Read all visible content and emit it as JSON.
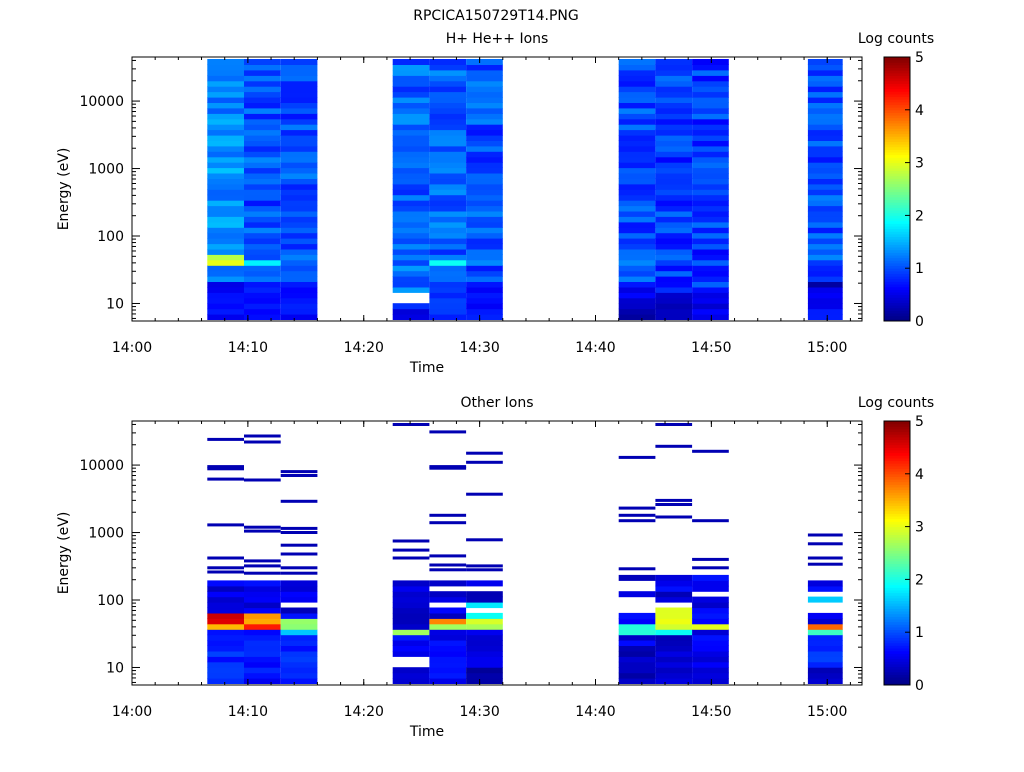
{
  "figure_title": "RPCICA150729T14.PNG",
  "chart_data": [
    {
      "type": "heatmap",
      "title": "H+ He++ Ions",
      "xlabel": "Time",
      "ylabel": "Energy (eV)",
      "xlim": [
        "14:00",
        "15:03"
      ],
      "ylim": [
        5.5,
        45000
      ],
      "yscale": "log",
      "x_ticks": [
        "14:00",
        "14:10",
        "14:20",
        "14:30",
        "14:40",
        "14:50",
        "15:00"
      ],
      "y_ticks": [
        "10",
        "100",
        "1000",
        "10000"
      ],
      "colorbar": {
        "label": "Log counts",
        "ticks": [
          "0",
          "1",
          "2",
          "3",
          "4",
          "5"
        ],
        "range": [
          0,
          5
        ],
        "colormap": "jet"
      },
      "legend": "none",
      "grid": false,
      "columns": [
        {
          "start": "14:06:30",
          "end": "14:09:40",
          "emin": 6,
          "emax": 42000,
          "base": 1.3,
          "features": [
            {
              "lo": 38,
              "hi": 58,
              "v": 2.9
            },
            {
              "lo": 6,
              "hi": 20,
              "v": 0.6
            }
          ]
        },
        {
          "start": "14:09:40",
          "end": "14:12:50",
          "emin": 6,
          "emax": 42000,
          "base": 1.0,
          "features": [
            {
              "lo": 38,
              "hi": 46,
              "v": 1.8
            },
            {
              "lo": 6,
              "hi": 20,
              "v": 0.7
            }
          ]
        },
        {
          "start": "14:12:50",
          "end": "14:16:00",
          "emin": 6,
          "emax": 42000,
          "base": 1.0,
          "features": [
            {
              "lo": 28,
              "hi": 32,
              "v": null
            },
            {
              "lo": 6,
              "hi": 20,
              "v": 0.7
            }
          ]
        },
        {
          "start": "14:22:30",
          "end": "14:25:40",
          "emin": 6,
          "emax": 42000,
          "base": 1.1,
          "features": [
            {
              "lo": 11,
              "hi": 15,
              "v": null
            },
            {
              "lo": 6,
              "hi": 9,
              "v": 0.5
            }
          ]
        },
        {
          "start": "14:25:40",
          "end": "14:28:50",
          "emin": 6,
          "emax": 42000,
          "base": 1.1,
          "features": [
            {
              "lo": 40,
              "hi": 48,
              "v": 1.8
            },
            {
              "lo": 6,
              "hi": 20,
              "v": 0.8
            }
          ]
        },
        {
          "start": "14:28:50",
          "end": "14:32:00",
          "emin": 6,
          "emax": 42000,
          "base": 1.0,
          "features": [
            {
              "lo": 6,
              "hi": 20,
              "v": 0.7
            }
          ]
        },
        {
          "start": "14:42:00",
          "end": "14:45:10",
          "emin": 6,
          "emax": 42000,
          "base": 1.0,
          "features": [
            {
              "lo": 6,
              "hi": 9,
              "v": 0.1
            },
            {
              "lo": 9,
              "hi": 18,
              "v": 0.5
            }
          ]
        },
        {
          "start": "14:45:10",
          "end": "14:48:20",
          "emin": 6,
          "emax": 42000,
          "base": 0.9,
          "features": [
            {
              "lo": 6,
              "hi": 14,
              "v": 0.4
            }
          ]
        },
        {
          "start": "14:48:20",
          "end": "14:51:30",
          "emin": 6,
          "emax": 42000,
          "base": 0.9,
          "features": [
            {
              "lo": 6,
              "hi": 14,
              "v": 0.5
            }
          ]
        },
        {
          "start": "14:58:20",
          "end": "15:01:20",
          "emin": 6,
          "emax": 42000,
          "base": 1.0,
          "features": [
            {
              "lo": 17,
              "hi": 21,
              "v": 0.2
            },
            {
              "lo": 9,
              "hi": 17,
              "v": 0.5
            },
            {
              "lo": 6,
              "hi": 9,
              "v": 0.8
            }
          ]
        }
      ]
    },
    {
      "type": "heatmap",
      "title": "Other Ions",
      "xlabel": "Time",
      "ylabel": "Energy (eV)",
      "xlim": [
        "14:00",
        "15:03"
      ],
      "ylim": [
        5.5,
        45000
      ],
      "yscale": "log",
      "x_ticks": [
        "14:00",
        "14:10",
        "14:20",
        "14:30",
        "14:40",
        "14:50",
        "15:00"
      ],
      "y_ticks": [
        "10",
        "100",
        "1000",
        "10000"
      ],
      "colorbar": {
        "label": "Log counts",
        "ticks": [
          "0",
          "1",
          "2",
          "3",
          "4",
          "5"
        ],
        "range": [
          0,
          5
        ],
        "colormap": "jet"
      },
      "legend": "none",
      "grid": false,
      "columns": [
        {
          "start": "14:06:30",
          "end": "14:09:40",
          "dense_top": 210,
          "features": [
            {
              "lo": 44,
              "hi": 62,
              "v": 4.6
            },
            {
              "lo": 36,
              "hi": 44,
              "v": 3.4
            },
            {
              "lo": 6,
              "hi": 30,
              "v": 0.8
            }
          ],
          "lines": [
            24000,
            9500,
            8800,
            6200,
            1300,
            420,
            300,
            260
          ]
        },
        {
          "start": "14:09:40",
          "end": "14:12:50",
          "dense_top": 210,
          "features": [
            {
              "lo": 44,
              "hi": 62,
              "v": 3.6
            },
            {
              "lo": 38,
              "hi": 44,
              "v": 4.2
            },
            {
              "lo": 6,
              "hi": 30,
              "v": 0.7
            }
          ],
          "lines": [
            27000,
            22000,
            6000,
            1200,
            1050,
            380,
            320,
            250
          ]
        },
        {
          "start": "14:12:50",
          "end": "14:16:00",
          "dense_top": 210,
          "features": [
            {
              "lo": 40,
              "hi": 50,
              "v": 2.6
            },
            {
              "lo": 32,
              "hi": 40,
              "v": 1.6
            },
            {
              "lo": 6,
              "hi": 30,
              "v": 0.8
            }
          ],
          "lines": [
            8000,
            7000,
            2900,
            1150,
            1000,
            650,
            480,
            300,
            250
          ]
        },
        {
          "start": "14:22:30",
          "end": "14:25:40",
          "dense_top": 200,
          "features": [
            {
              "lo": 28,
              "hi": 40,
              "v": 2.7
            },
            {
              "lo": 11,
              "hi": 14,
              "v": null
            },
            {
              "lo": 6,
              "hi": 9,
              "v": 0.3
            }
          ],
          "lines": [
            40000,
            750,
            550,
            420
          ]
        },
        {
          "start": "14:25:40",
          "end": "14:28:50",
          "dense_top": 190,
          "features": [
            {
              "lo": 44,
              "hi": 58,
              "v": 3.8
            },
            {
              "lo": 38,
              "hi": 44,
              "v": 2.8
            },
            {
              "lo": 6,
              "hi": 30,
              "v": 0.6
            }
          ],
          "lines": [
            31000,
            9500,
            9000,
            1800,
            1400,
            450,
            330,
            280
          ]
        },
        {
          "start": "14:28:50",
          "end": "14:32:00",
          "dense_top": 195,
          "features": [
            {
              "lo": 50,
              "hi": 90,
              "v": 1.9
            },
            {
              "lo": 40,
              "hi": 50,
              "v": 2.8
            },
            {
              "lo": 6,
              "hi": 10,
              "v": 0.2
            }
          ],
          "lines": [
            15000,
            11000,
            3700,
            780,
            320,
            280
          ]
        },
        {
          "start": "14:42:00",
          "end": "14:45:10",
          "dense_top": 220,
          "features": [
            {
              "lo": 30,
              "hi": 42,
              "v": 2.0
            },
            {
              "lo": 6,
              "hi": 20,
              "v": 0.3
            }
          ],
          "lines": [
            13000,
            2300,
            1800,
            1500,
            290
          ]
        },
        {
          "start": "14:45:10",
          "end": "14:48:20",
          "dense_top": 220,
          "features": [
            {
              "lo": 40,
              "hi": 80,
              "v": 3.0
            },
            {
              "lo": 30,
              "hi": 40,
              "v": 1.8
            },
            {
              "lo": 6,
              "hi": 20,
              "v": 0.4
            }
          ],
          "lines": [
            40000,
            19000,
            3000,
            2600,
            1700
          ]
        },
        {
          "start": "14:48:20",
          "end": "14:51:30",
          "dense_top": 220,
          "features": [
            {
              "lo": 38,
              "hi": 48,
              "v": 3.1
            },
            {
              "lo": 6,
              "hi": 20,
              "v": 0.5
            }
          ],
          "lines": [
            16000,
            1500,
            400,
            300
          ]
        },
        {
          "start": "14:58:20",
          "end": "15:01:20",
          "dense_top": 200,
          "features": [
            {
              "lo": 60,
              "hi": 120,
              "v": 1.7
            },
            {
              "lo": 36,
              "hi": 46,
              "v": 3.8
            },
            {
              "lo": 28,
              "hi": 36,
              "v": 2.2
            },
            {
              "lo": 9.5,
              "hi": 28,
              "v": 0.9
            }
          ],
          "lines": [
            920,
            680,
            420,
            340
          ]
        }
      ]
    }
  ]
}
